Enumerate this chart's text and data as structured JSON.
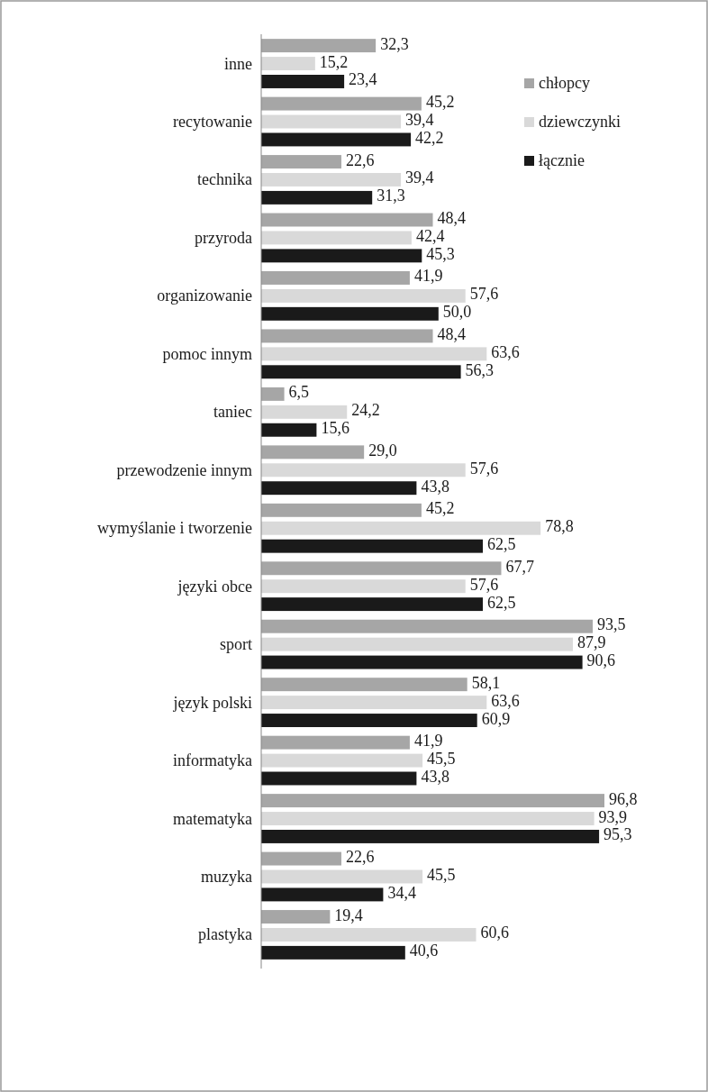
{
  "chart_data": {
    "type": "bar",
    "orientation": "horizontal",
    "categories": [
      "inne",
      "recytowanie",
      "technika",
      "przyroda",
      "organizowanie",
      "pomoc innym",
      "taniec",
      "przewodzenie innym",
      "wymyślanie i tworzenie",
      "języki obce",
      "sport",
      "język polski",
      "informatyka",
      "matematyka",
      "muzyka",
      "plastyka"
    ],
    "series": [
      {
        "name": "chłopcy",
        "color": "#a6a6a6",
        "values": [
          32.3,
          45.2,
          22.6,
          48.4,
          41.9,
          48.4,
          6.5,
          29.0,
          45.2,
          67.7,
          93.5,
          58.1,
          41.9,
          96.8,
          22.6,
          19.4
        ],
        "value_labels": [
          "32,3",
          "45,2",
          "22,6",
          "48,4",
          "41,9",
          "48,4",
          "6,5",
          "29,0",
          "45,2",
          "67,7",
          "93,5",
          "58,1",
          "41,9",
          "96,8",
          "22,6",
          "19,4"
        ]
      },
      {
        "name": "dziewczynki",
        "color": "#d9d9d9",
        "values": [
          15.2,
          39.4,
          39.4,
          42.4,
          57.6,
          63.6,
          24.2,
          57.6,
          78.8,
          57.6,
          87.9,
          63.6,
          45.5,
          93.9,
          45.5,
          60.6
        ],
        "value_labels": [
          "15,2",
          "39,4",
          "39,4",
          "42,4",
          "57,6",
          "63,6",
          "24,2",
          "57,6",
          "78,8",
          "57,6",
          "87,9",
          "63,6",
          "45,5",
          "93,9",
          "45,5",
          "60,6"
        ]
      },
      {
        "name": "łącznie",
        "color": "#1a1a1a",
        "values": [
          23.4,
          42.2,
          31.3,
          45.3,
          50.0,
          56.3,
          15.6,
          43.8,
          62.5,
          62.5,
          90.6,
          60.9,
          43.8,
          95.3,
          34.4,
          40.6
        ],
        "value_labels": [
          "23,4",
          "42,2",
          "31,3",
          "45,3",
          "50,0",
          "56,3",
          "15,6",
          "43,8",
          "62,5",
          "62,5",
          "90,6",
          "60,9",
          "43,8",
          "95,3",
          "34,4",
          "40,6"
        ]
      }
    ],
    "legend": "top right",
    "grid": false
  }
}
